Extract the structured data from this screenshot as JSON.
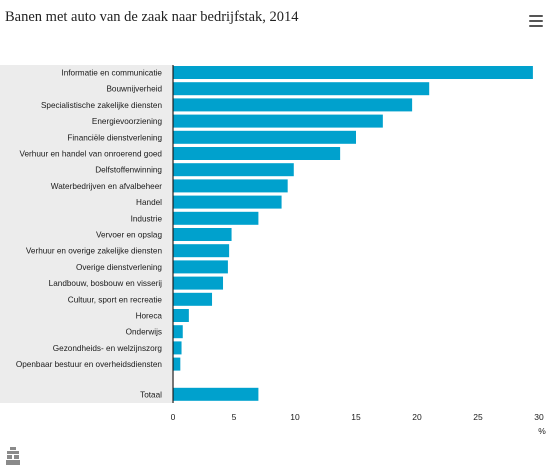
{
  "title": "Banen met auto van de zaak naar bedrijfstak, 2014",
  "menu_icon": "hamburger-menu-icon",
  "logo_icon": "cbs-logo-icon",
  "colors": {
    "bar": "#00a1cd",
    "label_background": "#ececec",
    "axis": "#1a1a1a"
  },
  "chart_data": {
    "type": "bar",
    "orientation": "horizontal",
    "categories": [
      "Informatie en communicatie",
      "Bouwnijverheid",
      "Specialistische zakelijke diensten",
      "Energievoorziening",
      "Financiële dienstverlening",
      "Verhuur en handel van onroerend goed",
      "Delfstoffenwinning",
      "Waterbedrijven en afvalbeheer",
      "Handel",
      "Industrie",
      "Vervoer en opslag",
      "Verhuur en overige zakelijke diensten",
      "Overige dienstverlening",
      "Landbouw, bosbouw en visserij",
      "Cultuur, sport en recreatie",
      "Horeca",
      "Onderwijs",
      "Gezondheids- en welzijnszorg",
      "Openbaar bestuur en overheidsdiensten",
      "Totaal"
    ],
    "values": [
      29.5,
      21.0,
      19.6,
      17.2,
      15.0,
      13.7,
      9.9,
      9.4,
      8.9,
      7.0,
      4.8,
      4.6,
      4.5,
      4.1,
      3.2,
      1.3,
      0.8,
      0.7,
      0.6,
      7.0
    ],
    "xlabel": "%",
    "ylabel": "",
    "xlim": [
      0,
      30
    ],
    "ticks": [
      "0",
      "5",
      "10",
      "15",
      "20",
      "25",
      "30"
    ],
    "grid": false,
    "legend": "none"
  }
}
